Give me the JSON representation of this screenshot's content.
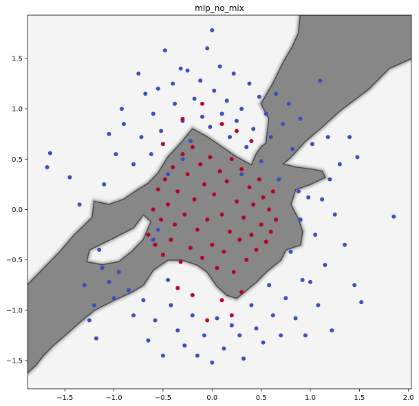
{
  "chart_data": {
    "type": "scatter",
    "title": "mlp_no_mix",
    "xlabel": "",
    "ylabel": "",
    "xlim": [
      -1.88,
      2.03
    ],
    "ylim": [
      -1.78,
      1.93
    ],
    "xticks": [
      -1.5,
      -1.0,
      -0.5,
      0.0,
      0.5,
      1.0,
      1.5,
      2.0
    ],
    "xtick_labels": [
      "−1.5",
      "−1.0",
      "−0.5",
      "0.0",
      "0.5",
      "1.0",
      "1.5",
      "2.0"
    ],
    "yticks": [
      -1.5,
      -1.0,
      -0.5,
      0.0,
      0.5,
      1.0,
      1.5
    ],
    "ytick_labels": [
      "−1.5",
      "−1.0",
      "−0.5",
      "0.0",
      "0.5",
      "1.0",
      "1.5"
    ],
    "grid": false,
    "colors": {
      "class_0_point": "#3b4cc0",
      "class_1_point": "#b40426",
      "region_class_1": "#878787",
      "region_class_0": "#f4f4f4"
    },
    "decision_region_class_1": [
      [
        -1.88,
        -0.75
      ],
      [
        -1.75,
        -0.62
      ],
      [
        -1.55,
        -0.42
      ],
      [
        -1.4,
        -0.25
      ],
      [
        -1.22,
        -0.08
      ],
      [
        -1.2,
        0.08
      ],
      [
        -1.05,
        0.05
      ],
      [
        -0.9,
        0.1
      ],
      [
        -0.75,
        0.2
      ],
      [
        -0.65,
        0.26
      ],
      [
        -0.55,
        0.36
      ],
      [
        -0.45,
        0.52
      ],
      [
        -0.3,
        0.68
      ],
      [
        -0.2,
        0.8
      ],
      [
        -0.05,
        0.72
      ],
      [
        0.1,
        0.62
      ],
      [
        0.25,
        0.52
      ],
      [
        0.4,
        0.44
      ],
      [
        0.45,
        0.55
      ],
      [
        0.5,
        0.62
      ],
      [
        0.55,
        0.66
      ],
      [
        0.58,
        0.9
      ],
      [
        0.5,
        1.05
      ],
      [
        0.62,
        1.25
      ],
      [
        0.72,
        1.45
      ],
      [
        0.82,
        1.62
      ],
      [
        0.88,
        1.75
      ],
      [
        0.9,
        1.93
      ],
      [
        2.03,
        1.93
      ],
      [
        2.03,
        1.5
      ],
      [
        1.8,
        1.4
      ],
      [
        1.6,
        1.2
      ],
      [
        1.3,
        0.98
      ],
      [
        1.12,
        0.82
      ],
      [
        0.95,
        0.68
      ],
      [
        0.8,
        0.52
      ],
      [
        0.72,
        0.45
      ],
      [
        0.85,
        0.42
      ],
      [
        1.0,
        0.4
      ],
      [
        1.12,
        0.38
      ],
      [
        1.15,
        0.32
      ],
      [
        1.0,
        0.25
      ],
      [
        0.85,
        0.2
      ],
      [
        0.8,
        0.05
      ],
      [
        0.88,
        -0.1
      ],
      [
        0.92,
        -0.22
      ],
      [
        0.9,
        -0.35
      ],
      [
        0.75,
        -0.4
      ],
      [
        0.7,
        -0.5
      ],
      [
        0.55,
        -0.62
      ],
      [
        0.45,
        -0.72
      ],
      [
        0.35,
        -0.8
      ],
      [
        0.25,
        -0.88
      ],
      [
        0.15,
        -0.85
      ],
      [
        0.05,
        -0.76
      ],
      [
        -0.05,
        -0.62
      ],
      [
        -0.15,
        -0.55
      ],
      [
        -0.3,
        -0.5
      ],
      [
        -0.45,
        -0.5
      ],
      [
        -0.6,
        -0.6
      ],
      [
        -0.7,
        -0.75
      ],
      [
        -0.82,
        -0.82
      ],
      [
        -1.0,
        -0.9
      ],
      [
        -1.2,
        -1.0
      ],
      [
        -1.35,
        -1.12
      ],
      [
        -1.5,
        -1.25
      ],
      [
        -1.62,
        -1.35
      ],
      [
        -1.72,
        -1.45
      ],
      [
        -1.8,
        -1.55
      ],
      [
        -1.88,
        -1.62
      ]
    ],
    "decision_region_class_0_hole": [
      [
        -1.25,
        -0.4
      ],
      [
        -1.0,
        -0.28
      ],
      [
        -0.8,
        -0.18
      ],
      [
        -0.7,
        -0.05
      ],
      [
        -0.62,
        -0.12
      ],
      [
        -0.7,
        -0.3
      ],
      [
        -0.82,
        -0.42
      ],
      [
        -0.95,
        -0.52
      ],
      [
        -1.12,
        -0.55
      ],
      [
        -1.28,
        -0.52
      ]
    ],
    "series": [
      {
        "class": 0,
        "points": [
          [
            -1.65,
            0.56
          ],
          [
            -1.68,
            0.42
          ],
          [
            -1.45,
            0.32
          ],
          [
            -1.35,
            0.05
          ],
          [
            -1.3,
            -0.75
          ],
          [
            -1.25,
            -1.1
          ],
          [
            -1.2,
            -0.95
          ],
          [
            -1.18,
            -1.28
          ],
          [
            -1.15,
            -0.4
          ],
          [
            -1.12,
            -0.58
          ],
          [
            -1.1,
            0.25
          ],
          [
            -1.05,
            0.75
          ],
          [
            -1.05,
            -0.72
          ],
          [
            -1.0,
            -0.88
          ],
          [
            -0.98,
            0.55
          ],
          [
            -0.95,
            -0.62
          ],
          [
            -0.92,
            1.0
          ],
          [
            -0.9,
            0.85
          ],
          [
            -0.85,
            -0.8
          ],
          [
            -0.8,
            0.45
          ],
          [
            -0.8,
            -1.05
          ],
          [
            -0.75,
            1.35
          ],
          [
            -0.72,
            0.72
          ],
          [
            -0.7,
            -0.9
          ],
          [
            -0.68,
            1.15
          ],
          [
            -0.65,
            -1.3
          ],
          [
            -0.62,
            0.55
          ],
          [
            -0.6,
            0.95
          ],
          [
            -0.58,
            -1.1
          ],
          [
            -0.55,
            1.2
          ],
          [
            -0.52,
            0.78
          ],
          [
            -0.5,
            -1.45
          ],
          [
            -0.48,
            1.58
          ],
          [
            -0.45,
            0.35
          ],
          [
            -0.42,
            -0.95
          ],
          [
            -0.4,
            1.25
          ],
          [
            -0.38,
            1.05
          ],
          [
            -0.35,
            -1.2
          ],
          [
            -0.32,
            1.4
          ],
          [
            -0.3,
            0.88
          ],
          [
            -0.28,
            -1.35
          ],
          [
            -0.25,
            1.38
          ],
          [
            -0.22,
            0.68
          ],
          [
            -0.2,
            -1.05
          ],
          [
            -0.18,
            1.1
          ],
          [
            -0.15,
            -1.45
          ],
          [
            -0.12,
            1.28
          ],
          [
            -0.1,
            0.92
          ],
          [
            -0.08,
            -1.25
          ],
          [
            -0.05,
            1.6
          ],
          [
            -0.02,
            0.82
          ],
          [
            0.0,
            -1.52
          ],
          [
            0.02,
            1.18
          ],
          [
            0.05,
            -1.08
          ],
          [
            0.08,
            1.42
          ],
          [
            0.1,
            0.95
          ],
          [
            0.12,
            -1.38
          ],
          [
            0.15,
            1.08
          ],
          [
            0.18,
            0.72
          ],
          [
            0.2,
            -1.15
          ],
          [
            0.22,
            1.35
          ],
          [
            0.25,
            0.88
          ],
          [
            0.28,
            -1.25
          ],
          [
            0.3,
            1.0
          ],
          [
            0.32,
            -1.48
          ],
          [
            0.35,
            0.62
          ],
          [
            0.38,
            1.25
          ],
          [
            0.4,
            -0.95
          ],
          [
            0.42,
            0.8
          ],
          [
            0.45,
            -1.18
          ],
          [
            0.48,
            1.12
          ],
          [
            0.5,
            0.48
          ],
          [
            0.52,
            -1.32
          ],
          [
            0.55,
            0.95
          ],
          [
            0.58,
            -0.75
          ],
          [
            0.6,
            0.72
          ],
          [
            0.62,
            -1.05
          ],
          [
            0.65,
            1.15
          ],
          [
            0.68,
            0.3
          ],
          [
            0.7,
            -1.25
          ],
          [
            0.72,
            0.85
          ],
          [
            0.75,
            -0.88
          ],
          [
            0.78,
            1.05
          ],
          [
            0.8,
            -0.42
          ],
          [
            0.82,
            0.6
          ],
          [
            0.85,
            -1.08
          ],
          [
            0.88,
            0.18
          ],
          [
            0.9,
            0.9
          ],
          [
            0.92,
            -0.7
          ],
          [
            0.95,
            -1.25
          ],
          [
            0.98,
            0.12
          ],
          [
            1.0,
            -0.72
          ],
          [
            1.02,
            0.65
          ],
          [
            1.05,
            -0.25
          ],
          [
            1.08,
            -0.95
          ],
          [
            1.1,
            1.28
          ],
          [
            1.12,
            0.1
          ],
          [
            1.15,
            -0.55
          ],
          [
            1.18,
            0.72
          ],
          [
            1.22,
            -1.2
          ],
          [
            1.25,
            -0.05
          ],
          [
            1.3,
            0.45
          ],
          [
            1.35,
            -0.35
          ],
          [
            1.4,
            0.72
          ],
          [
            1.45,
            -0.75
          ],
          [
            1.48,
            0.52
          ],
          [
            1.52,
            -0.92
          ],
          [
            1.85,
            -0.07
          ],
          [
            0.0,
            1.78
          ],
          [
            -0.3,
            0.5
          ],
          [
            0.3,
            0.35
          ],
          [
            -0.6,
            -0.3
          ],
          [
            0.9,
            -0.1
          ],
          [
            -0.55,
            -0.2
          ],
          [
            1.2,
            0.3
          ],
          [
            -0.45,
            -0.7
          ]
        ]
      },
      {
        "class": 1,
        "points": [
          [
            -0.65,
            -0.25
          ],
          [
            -0.6,
            0.0
          ],
          [
            -0.58,
            -0.35
          ],
          [
            -0.55,
            0.2
          ],
          [
            -0.52,
            -0.1
          ],
          [
            -0.5,
            -0.45
          ],
          [
            -0.48,
            0.3
          ],
          [
            -0.45,
            0.05
          ],
          [
            -0.42,
            -0.3
          ],
          [
            -0.4,
            0.42
          ],
          [
            -0.38,
            -0.15
          ],
          [
            -0.35,
            0.18
          ],
          [
            -0.32,
            -0.52
          ],
          [
            -0.3,
            0.55
          ],
          [
            -0.28,
            -0.05
          ],
          [
            -0.25,
            0.35
          ],
          [
            -0.22,
            -0.38
          ],
          [
            -0.2,
            0.62
          ],
          [
            -0.18,
            0.1
          ],
          [
            -0.15,
            -0.2
          ],
          [
            -0.12,
            0.45
          ],
          [
            -0.1,
            -0.48
          ],
          [
            -0.08,
            0.25
          ],
          [
            -0.05,
            -0.1
          ],
          [
            -0.02,
            0.52
          ],
          [
            0.0,
            -0.35
          ],
          [
            0.02,
            0.15
          ],
          [
            0.05,
            -0.58
          ],
          [
            0.08,
            0.38
          ],
          [
            0.1,
            -0.05
          ],
          [
            0.12,
            -0.42
          ],
          [
            0.15,
            0.28
          ],
          [
            0.18,
            -0.22
          ],
          [
            0.2,
            0.5
          ],
          [
            0.22,
            -0.62
          ],
          [
            0.25,
            0.08
          ],
          [
            0.28,
            -0.3
          ],
          [
            0.3,
            0.4
          ],
          [
            0.32,
            -0.08
          ],
          [
            0.35,
            -0.5
          ],
          [
            0.38,
            0.22
          ],
          [
            0.4,
            -0.25
          ],
          [
            0.42,
            0.05
          ],
          [
            0.45,
            -0.4
          ],
          [
            0.48,
            0.3
          ],
          [
            0.5,
            -0.15
          ],
          [
            0.52,
            0.12
          ],
          [
            0.55,
            -0.32
          ],
          [
            0.58,
            0.0
          ],
          [
            0.6,
            -0.22
          ],
          [
            0.62,
            0.18
          ],
          [
            0.65,
            -0.1
          ],
          [
            -0.1,
            1.05
          ],
          [
            0.1,
            0.85
          ],
          [
            -0.3,
            0.9
          ],
          [
            0.25,
            0.78
          ],
          [
            -0.5,
            0.65
          ],
          [
            0.4,
            0.68
          ],
          [
            -0.2,
            -0.85
          ],
          [
            0.1,
            -0.9
          ],
          [
            -0.35,
            -0.78
          ],
          [
            0.3,
            -0.82
          ],
          [
            -0.05,
            -1.1
          ],
          [
            0.2,
            -1.05
          ]
        ]
      }
    ]
  }
}
